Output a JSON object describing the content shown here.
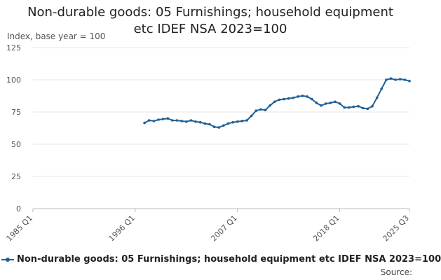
{
  "title_line1": "Non-durable goods: 05 Furnishings; household equipment",
  "title_line2": "etc IDEF NSA 2023=100",
  "subtitle": "Index, base year = 100",
  "source_label": "Source:",
  "colors": {
    "series": "#206095",
    "grid": "#e6e6e6",
    "axis": "#bbbbbb"
  },
  "chart_data": {
    "type": "line",
    "title": "Non-durable goods: 05 Furnishings; household equipment etc IDEF NSA 2023=100",
    "ylabel": "Index, base year = 100",
    "xlabel": "",
    "xlim": [
      "1985 Q1",
      "2025 Q3"
    ],
    "ylim": [
      0,
      125
    ],
    "y_ticks": [
      0,
      25,
      50,
      75,
      100,
      125
    ],
    "x_tick_labels": [
      "1985 Q1",
      "1996 Q1",
      "2007 Q1",
      "2018 Q1",
      "2025 Q3"
    ],
    "x_tick_positions": [
      1985.0,
      1996.0,
      2007.0,
      2018.0,
      2025.5
    ],
    "grid": true,
    "legend_position": "bottom",
    "series": [
      {
        "name": "Non-durable goods: 05 Furnishings; household equipment etc IDEF NSA 2023=100",
        "x": [
          1997.0,
          1997.5,
          1998.0,
          1998.5,
          1999.0,
          1999.5,
          2000.0,
          2000.5,
          2001.0,
          2001.5,
          2002.0,
          2002.5,
          2003.0,
          2003.5,
          2004.0,
          2004.5,
          2005.0,
          2005.5,
          2006.0,
          2006.5,
          2007.0,
          2007.5,
          2008.0,
          2008.5,
          2009.0,
          2009.5,
          2010.0,
          2010.5,
          2011.0,
          2011.5,
          2012.0,
          2012.5,
          2013.0,
          2013.5,
          2014.0,
          2014.5,
          2015.0,
          2015.5,
          2016.0,
          2016.5,
          2017.0,
          2017.5,
          2018.0,
          2018.5,
          2019.0,
          2019.5,
          2020.0,
          2020.5,
          2021.0,
          2021.5,
          2022.0,
          2022.5,
          2023.0,
          2023.5,
          2024.0,
          2024.5,
          2025.0,
          2025.5
        ],
        "values": [
          66.5,
          68.5,
          68.0,
          69.0,
          69.5,
          70.0,
          68.5,
          68.5,
          68.0,
          67.5,
          68.5,
          67.5,
          67.0,
          66.0,
          65.5,
          63.5,
          63.0,
          64.5,
          66.0,
          67.0,
          67.5,
          68.0,
          68.5,
          72.0,
          76.0,
          77.0,
          76.5,
          80.0,
          83.0,
          84.5,
          85.0,
          85.5,
          86.0,
          87.0,
          87.5,
          87.0,
          85.0,
          82.0,
          80.0,
          81.5,
          82.0,
          83.0,
          81.5,
          78.5,
          78.5,
          79.0,
          79.5,
          78.0,
          77.5,
          79.5,
          86.0,
          93.0,
          100.0,
          101.0,
          100.0,
          100.5,
          100.0,
          99.0
        ]
      }
    ]
  }
}
